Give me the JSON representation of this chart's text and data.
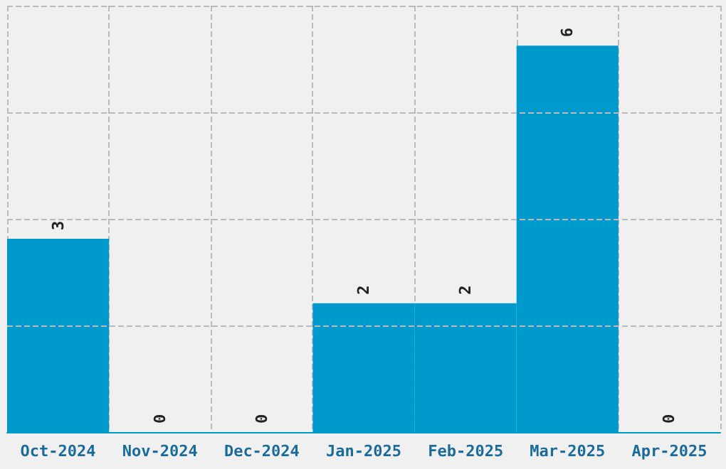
{
  "chart_data": {
    "type": "bar",
    "categories": [
      "Oct-2024",
      "Nov-2024",
      "Dec-2024",
      "Jan-2025",
      "Feb-2025",
      "Mar-2025",
      "Apr-2025"
    ],
    "values": [
      3,
      0,
      0,
      2,
      2,
      6,
      0
    ],
    "color": "#0099cc",
    "data_labels": true,
    "grid": true,
    "tick_labels": "x",
    "ylim": [
      0,
      6.62
    ],
    "yticks": [
      {
        "value": 1.655,
        "label": null
      },
      {
        "value": 3.31,
        "label": null
      },
      {
        "value": 4.965,
        "label": null
      },
      {
        "value": 6.62,
        "label": null
      }
    ]
  }
}
